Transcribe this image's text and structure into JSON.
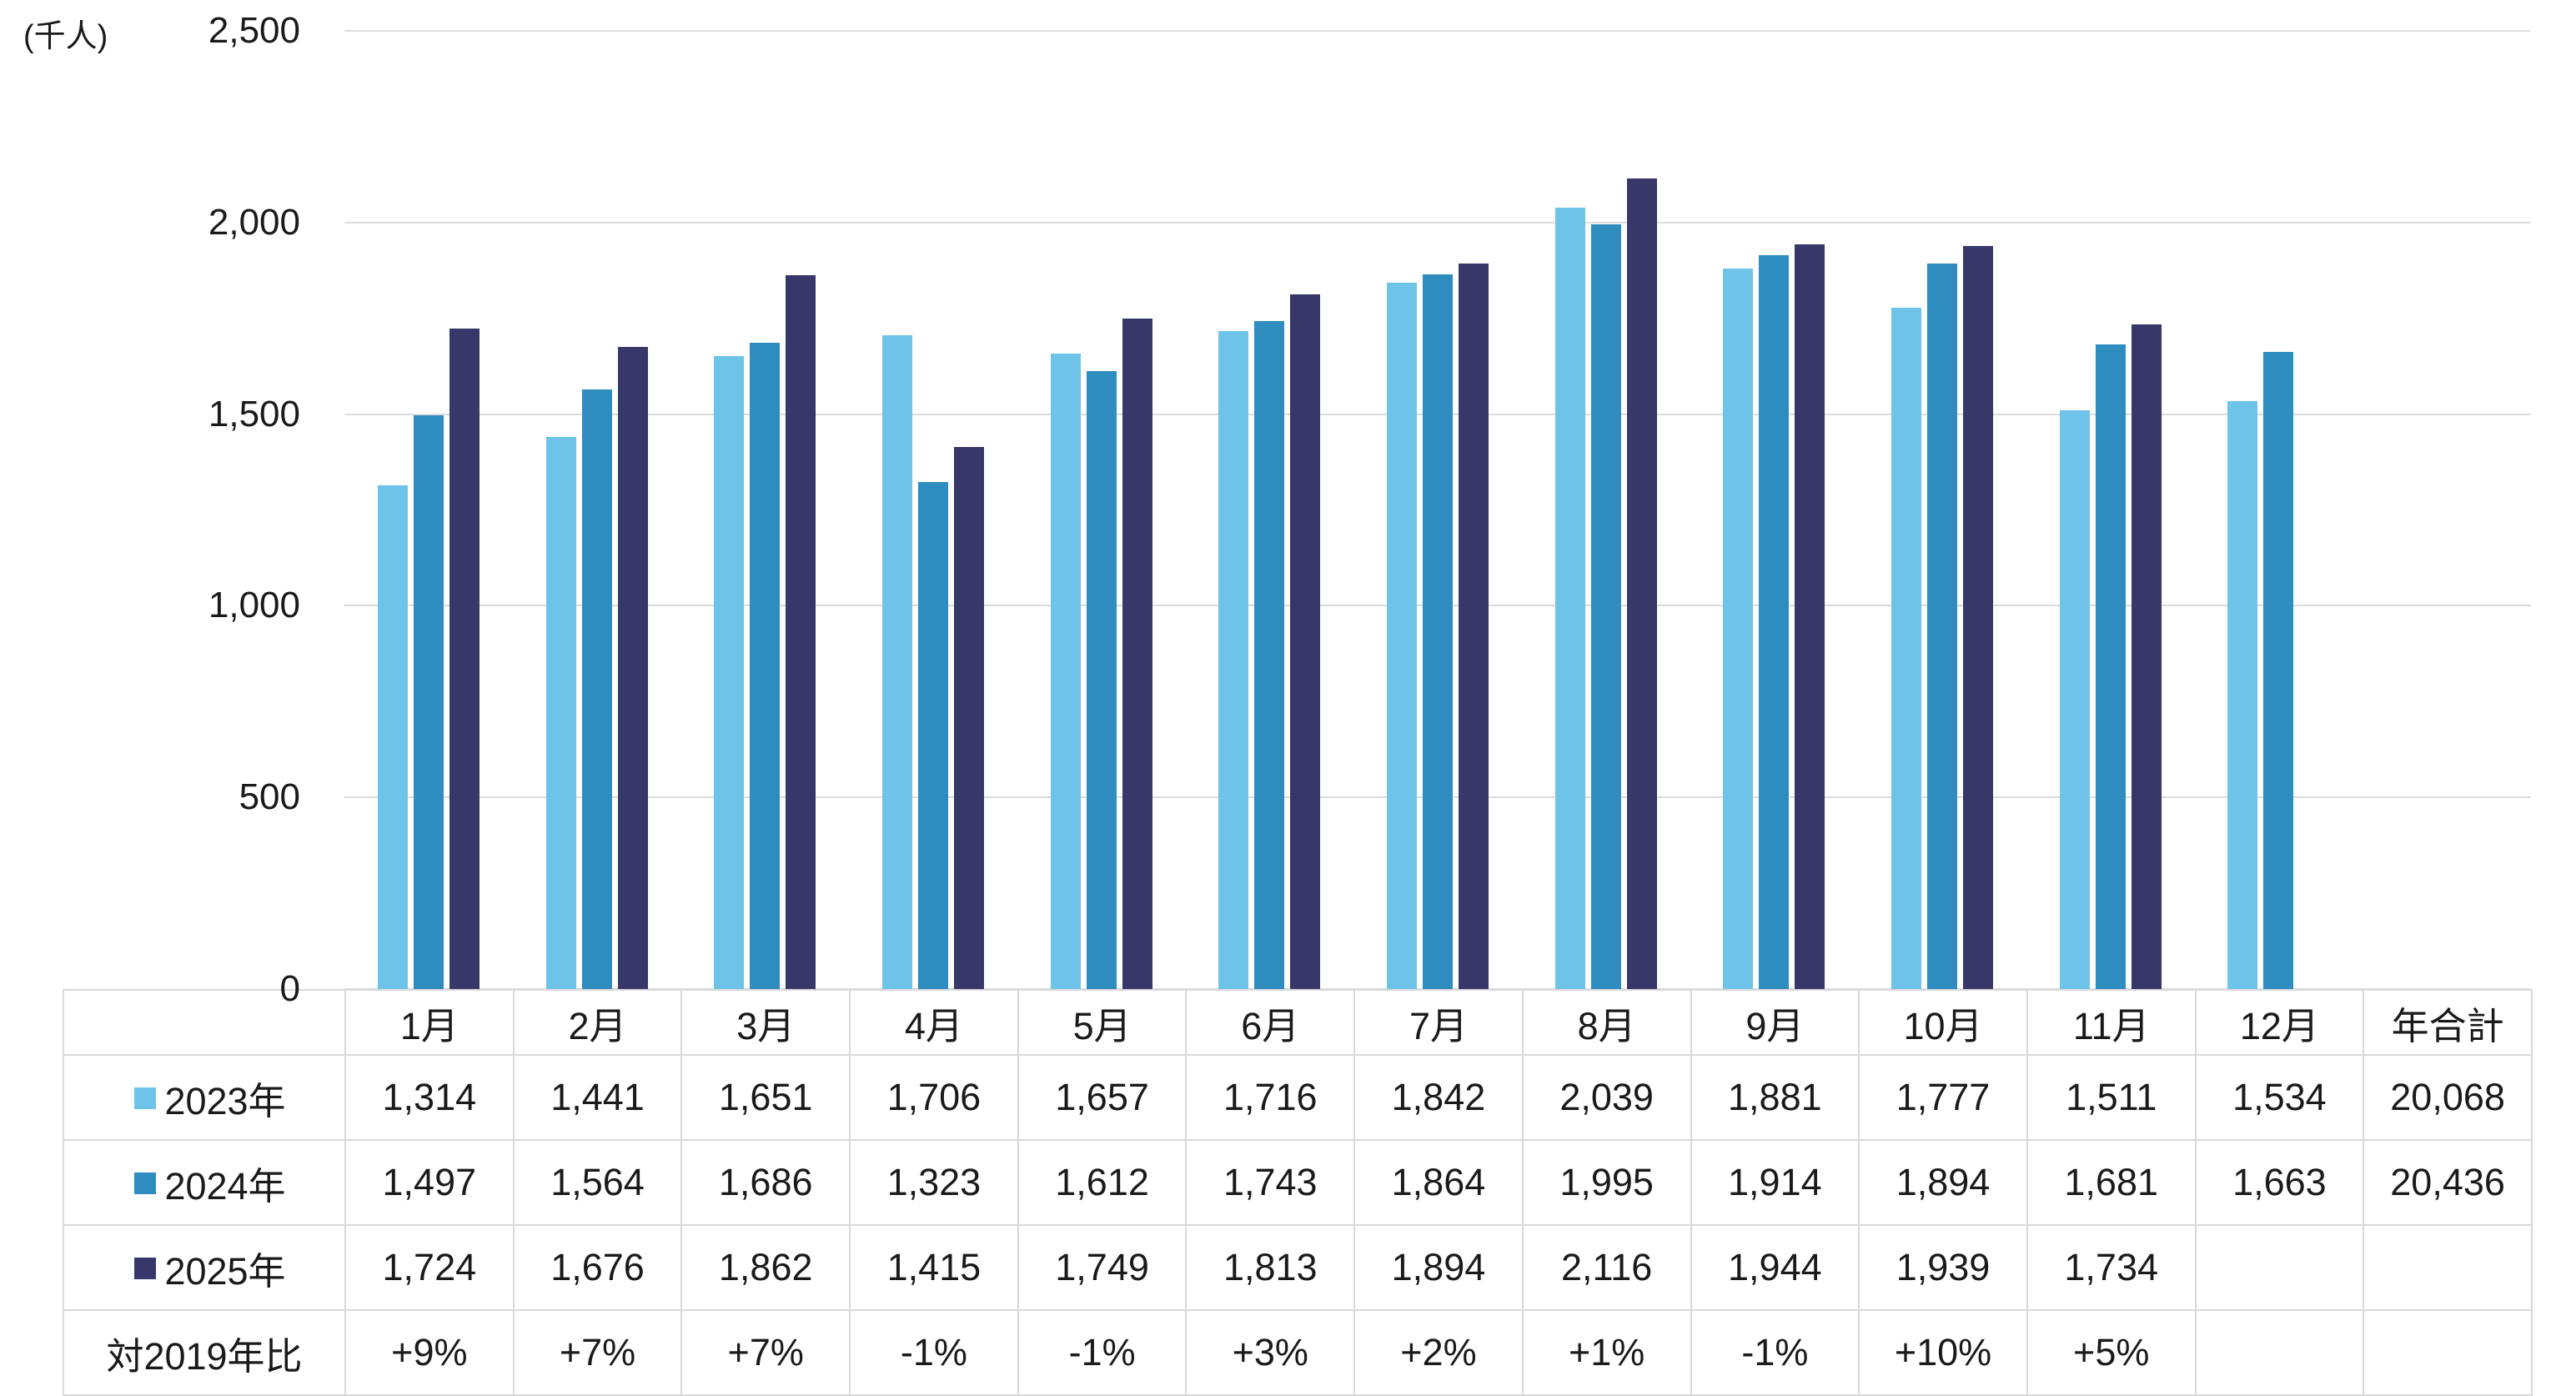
{
  "chart_data": {
    "type": "bar",
    "title": "",
    "unit_label": "(千人)",
    "categories": [
      "1月",
      "2月",
      "3月",
      "4月",
      "5月",
      "6月",
      "7月",
      "8月",
      "9月",
      "10月",
      "11月",
      "12月"
    ],
    "total_label": "年合計",
    "ylim": [
      0,
      2500
    ],
    "y_ticks": [
      0,
      500,
      1000,
      1500,
      2000,
      2500
    ],
    "grid": true,
    "legend_position": "table-left",
    "colors": {
      "y2023": "#6ec4e8",
      "y2024": "#2e8cbe",
      "y2025": "#373769",
      "gridline": "#d9d9d9"
    },
    "series": [
      {
        "name": "2023年",
        "color": "#6ec4e8",
        "values": [
          1314,
          1441,
          1651,
          1706,
          1657,
          1716,
          1842,
          2039,
          1881,
          1777,
          1511,
          1534
        ],
        "total": 20068
      },
      {
        "name": "2024年",
        "color": "#2e8cbe",
        "values": [
          1497,
          1564,
          1686,
          1323,
          1612,
          1743,
          1864,
          1995,
          1914,
          1894,
          1681,
          1663
        ],
        "total": 20436
      },
      {
        "name": "2025年",
        "color": "#373769",
        "values": [
          1724,
          1676,
          1862,
          1415,
          1749,
          1813,
          1894,
          2116,
          1944,
          1939,
          1734
        ],
        "total": null
      }
    ],
    "comparison_row": {
      "label": "対2019年比",
      "values": [
        "+9%",
        "+7%",
        "+7%",
        "-1%",
        "-1%",
        "+3%",
        "+2%",
        "+1%",
        "-1%",
        "+10%",
        "+5%"
      ]
    }
  }
}
